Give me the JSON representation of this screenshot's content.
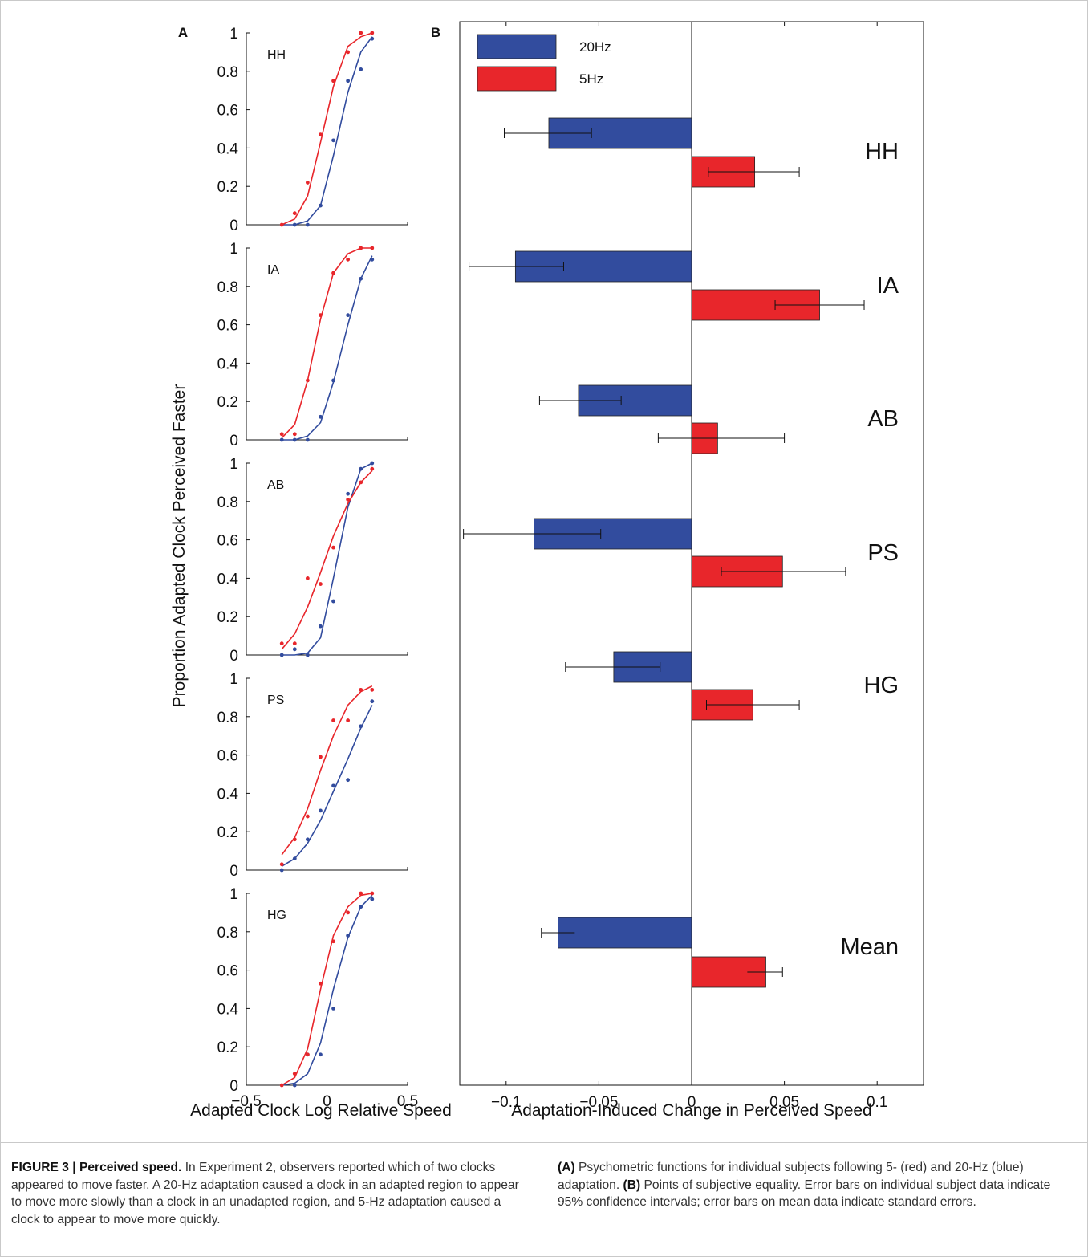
{
  "colors": {
    "red": "#e8262b",
    "blue": "#324c9e",
    "axis": "#111111"
  },
  "panel_a": {
    "label": "A",
    "ylabel": "Proportion Adapted Clock Perceived Faster",
    "xlabel": "Adapted Clock Log Relative Speed",
    "x_ticks": [
      "−0.5",
      "0",
      "0.5"
    ],
    "y_ticks": [
      "0",
      "0.2",
      "0.4",
      "0.6",
      "0.8",
      "1"
    ]
  },
  "panel_b": {
    "label": "B",
    "xlabel": "Adaptation-Induced Change in Perceived Speed",
    "x_ticks": [
      "−0.1",
      "−0.05",
      "0",
      "0.05",
      "0.1"
    ],
    "legend": [
      "20Hz",
      "5Hz"
    ]
  },
  "chart_data": [
    {
      "type": "line",
      "panel": "A",
      "xlim": [
        -0.5,
        0.5
      ],
      "ylim": [
        0,
        1
      ],
      "xlabel": "Adapted Clock Log Relative Speed",
      "ylabel": "Proportion Adapted Clock Perceived Faster",
      "subplots": [
        {
          "label": "HH",
          "points_5hz": [
            [
              -0.28,
              0.0
            ],
            [
              -0.2,
              0.06
            ],
            [
              -0.12,
              0.22
            ],
            [
              -0.04,
              0.47
            ],
            [
              0.04,
              0.75
            ],
            [
              0.13,
              0.9
            ],
            [
              0.21,
              1.0
            ],
            [
              0.28,
              1.0
            ]
          ],
          "points_20hz": [
            [
              -0.2,
              0.0
            ],
            [
              -0.12,
              0.0
            ],
            [
              -0.04,
              0.1
            ],
            [
              0.04,
              0.44
            ],
            [
              0.13,
              0.75
            ],
            [
              0.21,
              0.81
            ],
            [
              0.28,
              0.97
            ]
          ],
          "fit_5hz": [
            [
              -0.28,
              0.0
            ],
            [
              -0.2,
              0.03
            ],
            [
              -0.12,
              0.15
            ],
            [
              -0.04,
              0.43
            ],
            [
              0.04,
              0.72
            ],
            [
              0.13,
              0.93
            ],
            [
              0.21,
              0.98
            ],
            [
              0.28,
              1.0
            ]
          ],
          "fit_20hz": [
            [
              -0.28,
              0.0
            ],
            [
              -0.2,
              0.0
            ],
            [
              -0.12,
              0.02
            ],
            [
              -0.04,
              0.1
            ],
            [
              0.04,
              0.36
            ],
            [
              0.13,
              0.69
            ],
            [
              0.21,
              0.9
            ],
            [
              0.28,
              0.98
            ]
          ]
        },
        {
          "label": "IA",
          "points_5hz": [
            [
              -0.28,
              0.03
            ],
            [
              -0.2,
              0.03
            ],
            [
              -0.12,
              0.31
            ],
            [
              -0.04,
              0.65
            ],
            [
              0.04,
              0.87
            ],
            [
              0.13,
              0.94
            ],
            [
              0.21,
              1.0
            ],
            [
              0.28,
              1.0
            ]
          ],
          "points_20hz": [
            [
              -0.28,
              0.0
            ],
            [
              -0.2,
              0.0
            ],
            [
              -0.12,
              0.0
            ],
            [
              -0.04,
              0.12
            ],
            [
              0.04,
              0.31
            ],
            [
              0.13,
              0.65
            ],
            [
              0.21,
              0.84
            ],
            [
              0.28,
              0.94
            ]
          ],
          "fit_5hz": [
            [
              -0.28,
              0.01
            ],
            [
              -0.2,
              0.08
            ],
            [
              -0.12,
              0.31
            ],
            [
              -0.04,
              0.63
            ],
            [
              0.04,
              0.87
            ],
            [
              0.13,
              0.97
            ],
            [
              0.21,
              1.0
            ],
            [
              0.28,
              1.0
            ]
          ],
          "fit_20hz": [
            [
              -0.28,
              0.0
            ],
            [
              -0.2,
              0.0
            ],
            [
              -0.12,
              0.02
            ],
            [
              -0.04,
              0.09
            ],
            [
              0.04,
              0.3
            ],
            [
              0.13,
              0.6
            ],
            [
              0.21,
              0.84
            ],
            [
              0.28,
              0.96
            ]
          ]
        },
        {
          "label": "AB",
          "points_5hz": [
            [
              -0.28,
              0.06
            ],
            [
              -0.2,
              0.06
            ],
            [
              -0.12,
              0.4
            ],
            [
              -0.04,
              0.37
            ],
            [
              0.04,
              0.56
            ],
            [
              0.13,
              0.81
            ],
            [
              0.21,
              0.9
            ],
            [
              0.28,
              0.97
            ]
          ],
          "points_20hz": [
            [
              -0.28,
              0.0
            ],
            [
              -0.2,
              0.03
            ],
            [
              -0.12,
              0.0
            ],
            [
              -0.04,
              0.15
            ],
            [
              0.04,
              0.28
            ],
            [
              0.13,
              0.84
            ],
            [
              0.21,
              0.97
            ],
            [
              0.28,
              1.0
            ]
          ],
          "fit_5hz": [
            [
              -0.28,
              0.03
            ],
            [
              -0.2,
              0.11
            ],
            [
              -0.12,
              0.25
            ],
            [
              -0.04,
              0.43
            ],
            [
              0.04,
              0.62
            ],
            [
              0.13,
              0.79
            ],
            [
              0.21,
              0.9
            ],
            [
              0.28,
              0.96
            ]
          ],
          "fit_20hz": [
            [
              -0.28,
              0.0
            ],
            [
              -0.2,
              0.0
            ],
            [
              -0.12,
              0.01
            ],
            [
              -0.04,
              0.09
            ],
            [
              0.04,
              0.4
            ],
            [
              0.13,
              0.77
            ],
            [
              0.21,
              0.97
            ],
            [
              0.28,
              1.0
            ]
          ]
        },
        {
          "label": "PS",
          "points_5hz": [
            [
              -0.28,
              0.03
            ],
            [
              -0.2,
              0.16
            ],
            [
              -0.12,
              0.28
            ],
            [
              -0.04,
              0.59
            ],
            [
              0.04,
              0.78
            ],
            [
              0.13,
              0.78
            ],
            [
              0.21,
              0.94
            ],
            [
              0.28,
              0.94
            ]
          ],
          "points_20hz": [
            [
              -0.28,
              0.0
            ],
            [
              -0.2,
              0.06
            ],
            [
              -0.12,
              0.16
            ],
            [
              -0.04,
              0.31
            ],
            [
              0.04,
              0.44
            ],
            [
              0.13,
              0.47
            ],
            [
              0.21,
              0.75
            ],
            [
              0.28,
              0.88
            ]
          ],
          "fit_5hz": [
            [
              -0.28,
              0.08
            ],
            [
              -0.2,
              0.17
            ],
            [
              -0.12,
              0.32
            ],
            [
              -0.04,
              0.52
            ],
            [
              0.04,
              0.7
            ],
            [
              0.13,
              0.86
            ],
            [
              0.21,
              0.93
            ],
            [
              0.28,
              0.96
            ]
          ],
          "fit_20hz": [
            [
              -0.28,
              0.02
            ],
            [
              -0.2,
              0.06
            ],
            [
              -0.12,
              0.14
            ],
            [
              -0.04,
              0.26
            ],
            [
              0.04,
              0.41
            ],
            [
              0.13,
              0.58
            ],
            [
              0.21,
              0.74
            ],
            [
              0.28,
              0.86
            ]
          ]
        },
        {
          "label": "HG",
          "points_5hz": [
            [
              -0.28,
              0.0
            ],
            [
              -0.2,
              0.06
            ],
            [
              -0.12,
              0.16
            ],
            [
              -0.04,
              0.53
            ],
            [
              0.04,
              0.75
            ],
            [
              0.13,
              0.9
            ],
            [
              0.21,
              1.0
            ],
            [
              0.28,
              1.0
            ]
          ],
          "points_20hz": [
            [
              -0.2,
              0.0
            ],
            [
              -0.12,
              0.16
            ],
            [
              -0.04,
              0.16
            ],
            [
              0.04,
              0.4
            ],
            [
              0.13,
              0.78
            ],
            [
              0.21,
              0.93
            ],
            [
              0.28,
              0.97
            ]
          ],
          "fit_5hz": [
            [
              -0.28,
              0.0
            ],
            [
              -0.2,
              0.04
            ],
            [
              -0.12,
              0.19
            ],
            [
              -0.04,
              0.5
            ],
            [
              0.04,
              0.78
            ],
            [
              0.13,
              0.93
            ],
            [
              0.21,
              0.99
            ],
            [
              0.28,
              1.0
            ]
          ],
          "fit_20hz": [
            [
              -0.28,
              0.0
            ],
            [
              -0.2,
              0.01
            ],
            [
              -0.12,
              0.06
            ],
            [
              -0.04,
              0.22
            ],
            [
              0.04,
              0.5
            ],
            [
              0.13,
              0.77
            ],
            [
              0.21,
              0.93
            ],
            [
              0.28,
              0.99
            ]
          ]
        }
      ]
    },
    {
      "type": "bar",
      "panel": "B",
      "orientation": "horizontal",
      "xlim": [
        -0.125,
        0.125
      ],
      "xlabel": "Adaptation-Induced Change in Perceived Speed",
      "categories": [
        "HH",
        "IA",
        "AB",
        "PS",
        "HG",
        "Mean"
      ],
      "series": [
        {
          "name": "20Hz",
          "values": [
            -0.077,
            -0.095,
            -0.061,
            -0.085,
            -0.042,
            -0.072
          ],
          "err_low": [
            -0.101,
            -0.12,
            -0.082,
            -0.123,
            -0.068,
            -0.081
          ],
          "err_high": [
            -0.054,
            -0.069,
            -0.038,
            -0.049,
            -0.017,
            -0.063
          ]
        },
        {
          "name": "5Hz",
          "values": [
            0.034,
            0.069,
            0.014,
            0.049,
            0.033,
            0.04
          ],
          "err_low": [
            0.009,
            0.045,
            -0.018,
            0.016,
            0.008,
            0.03
          ],
          "err_high": [
            0.058,
            0.093,
            0.05,
            0.083,
            0.058,
            0.049
          ]
        }
      ],
      "legend": "top-left"
    }
  ],
  "caption": {
    "title": "FIGURE 3 | Perceived speed.",
    "left_text": " In Experiment 2, observers reported which of two clocks appeared to move faster. A 20-Hz adaptation caused a clock in an adapted region to appear to move more slowly than a clock in an unadapted region, and 5-Hz adaptation caused a clock to appear to move more quickly.",
    "a_label": "(A)",
    "a_text": " Psychometric functions for individual subjects following 5- (red) and 20-Hz (blue) adaptation. ",
    "b_label": "(B)",
    "b_text": " Points of subjective equality. Error bars on individual subject data indicate 95% confidence intervals; error bars on mean data indicate standard errors."
  }
}
